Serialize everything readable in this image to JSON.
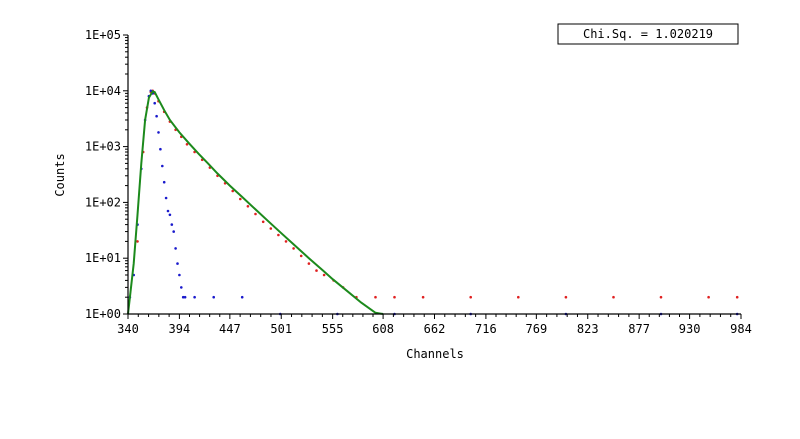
{
  "chart_data": {
    "type": "scatter",
    "title": "",
    "xlabel": "Channels",
    "ylabel": "Counts",
    "x_scale": "linear",
    "y_scale": "log",
    "xlim": [
      340,
      984
    ],
    "ylim": [
      1,
      100000
    ],
    "x_ticks": [
      "340",
      "394",
      "447",
      "501",
      "555",
      "608",
      "662",
      "716",
      "769",
      "823",
      "877",
      "930",
      "984"
    ],
    "x_tick_values": [
      340,
      394,
      447,
      501,
      555,
      608,
      662,
      716,
      769,
      823,
      877,
      930,
      984
    ],
    "y_ticks": [
      "1E+00",
      "1E+01",
      "1E+02",
      "1E+03",
      "1E+04",
      "1E+05"
    ],
    "y_tick_values": [
      1,
      10,
      100,
      1000,
      10000,
      100000
    ],
    "grid": false,
    "legend": "none",
    "annotation": "Chi.Sq. = 1.020219",
    "colors": {
      "decay_points": "#e02020",
      "irf_points": "#1a1acc",
      "fit_line": "#1c8a1c"
    },
    "series": [
      {
        "kind": "points",
        "color_key": "decay_points",
        "x": [
          350,
          356,
          360,
          364,
          366,
          368,
          372,
          378,
          384,
          390,
          396,
          402,
          410,
          418,
          426,
          434,
          442,
          450,
          458,
          466,
          474,
          482,
          490,
          498,
          506,
          514,
          522,
          530,
          538,
          546,
          556,
          566,
          580,
          600,
          620,
          650,
          700,
          750,
          800,
          850,
          900,
          950,
          980
        ],
        "y": [
          20,
          800,
          5000,
          9500,
          10000,
          9000,
          6500,
          4200,
          2800,
          2000,
          1500,
          1100,
          800,
          580,
          420,
          300,
          220,
          160,
          115,
          85,
          62,
          45,
          34,
          26,
          20,
          15,
          11,
          8,
          6,
          5,
          4,
          3,
          2,
          2,
          2,
          2,
          2,
          2,
          2,
          2,
          2,
          2,
          2
        ]
      },
      {
        "kind": "points",
        "color_key": "irf_points",
        "x": [
          342,
          346,
          350,
          354,
          358,
          362,
          364,
          366,
          368,
          370,
          372,
          374,
          376,
          378,
          380,
          382,
          384,
          386,
          388,
          390,
          392,
          394,
          396,
          398,
          400,
          410,
          430,
          460,
          500,
          560,
          620,
          700,
          800,
          900,
          980
        ],
        "y": [
          2,
          5,
          40,
          400,
          3000,
          8000,
          10000,
          9000,
          6000,
          3500,
          1800,
          900,
          450,
          230,
          120,
          70,
          60,
          40,
          30,
          15,
          8,
          5,
          3,
          2,
          2,
          2,
          2,
          2,
          1,
          1,
          1,
          1,
          1,
          1,
          1
        ]
      },
      {
        "kind": "line",
        "color_key": "fit_line",
        "x": [
          340,
          346,
          350,
          354,
          358,
          362,
          366,
          368,
          372,
          378,
          384,
          394,
          404,
          414,
          424,
          434,
          447,
          460,
          474,
          488,
          501,
          515,
          530,
          545,
          555,
          570,
          585,
          600,
          608
        ],
        "y": [
          1,
          8,
          60,
          500,
          3000,
          7500,
          9800,
          9500,
          7000,
          4500,
          3000,
          1800,
          1150,
          750,
          500,
          330,
          200,
          125,
          75,
          45,
          28,
          17,
          10,
          6,
          4.2,
          2.6,
          1.6,
          1.05,
          1
        ]
      }
    ]
  }
}
